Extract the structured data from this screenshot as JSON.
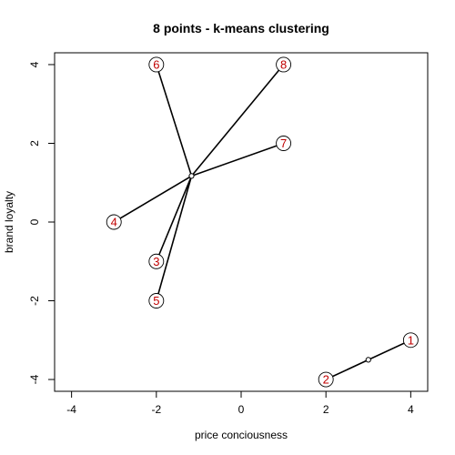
{
  "chart_data": {
    "type": "scatter",
    "title": "8 points - k-means clustering",
    "xlabel": "price conciousness",
    "ylabel": "brand loyalty",
    "xlim": [
      -4.4,
      4.4
    ],
    "ylim": [
      -4.3,
      4.3
    ],
    "xticks": [
      -4,
      -2,
      0,
      2,
      4
    ],
    "yticks": [
      -4,
      -2,
      0,
      2,
      4
    ],
    "colors": {
      "label": "#c00000",
      "line": "#000000"
    },
    "points": [
      {
        "label": "1",
        "x": 4,
        "y": -3,
        "cluster": 2
      },
      {
        "label": "2",
        "x": 2,
        "y": -4,
        "cluster": 2
      },
      {
        "label": "3",
        "x": -2,
        "y": -1,
        "cluster": 1
      },
      {
        "label": "4",
        "x": -3,
        "y": 0,
        "cluster": 1
      },
      {
        "label": "5",
        "x": -2,
        "y": -2,
        "cluster": 1
      },
      {
        "label": "6",
        "x": -2,
        "y": 4,
        "cluster": 1
      },
      {
        "label": "7",
        "x": 1,
        "y": 2,
        "cluster": 1
      },
      {
        "label": "8",
        "x": 1,
        "y": 4,
        "cluster": 1
      }
    ],
    "centroids": [
      {
        "cluster": 1,
        "x": -1.17,
        "y": 1.17
      },
      {
        "cluster": 2,
        "x": 3,
        "y": -3.5
      }
    ]
  }
}
